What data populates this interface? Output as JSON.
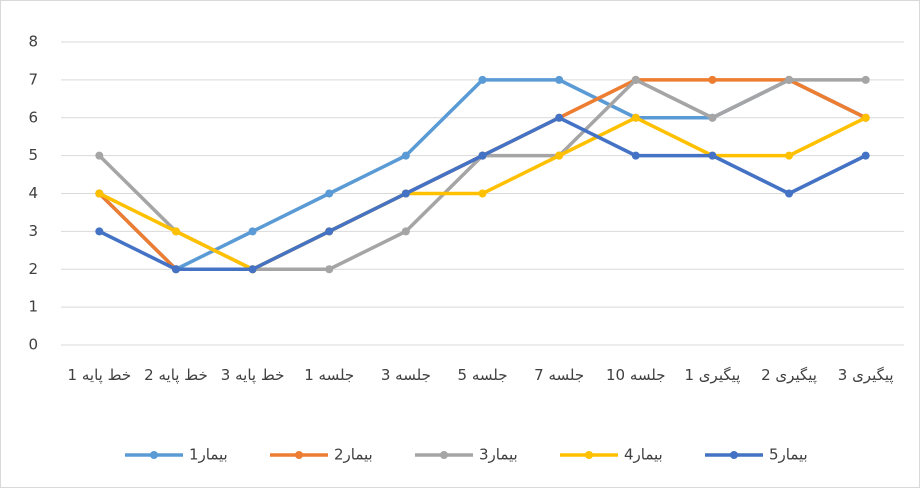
{
  "chart_data": {
    "type": "line",
    "categories": [
      "خط پایه 1",
      "خط پایه 2",
      "خط پایه 3",
      "جلسه 1",
      "جلسه 3",
      "جلسه 5",
      "جلسه 7",
      "جلسه 10",
      "پیگیری 1",
      "پیگیری 2",
      "پیگیری 3"
    ],
    "series": [
      {
        "name": "بیمار1",
        "color": "#5B9BD5",
        "values": [
          4,
          2,
          3,
          4,
          5,
          7,
          7,
          6,
          6,
          7,
          6
        ]
      },
      {
        "name": "بیمار2",
        "color": "#ED7D31",
        "values": [
          4,
          2,
          2,
          3,
          4,
          5,
          6,
          7,
          7,
          7,
          6
        ]
      },
      {
        "name": "بیمار3",
        "color": "#A5A5A5",
        "values": [
          5,
          3,
          2,
          2,
          3,
          5,
          5,
          7,
          6,
          7,
          7
        ]
      },
      {
        "name": "بیمار4",
        "color": "#FFC000",
        "values": [
          4,
          3,
          2,
          3,
          4,
          4,
          5,
          6,
          5,
          5,
          6
        ]
      },
      {
        "name": "بیمار5",
        "color": "#4472C4",
        "values": [
          3,
          2,
          2,
          3,
          4,
          5,
          6,
          5,
          5,
          4,
          5
        ]
      }
    ],
    "ylim": [
      0,
      8
    ],
    "yticks": [
      0,
      1,
      2,
      3,
      4,
      5,
      6,
      7,
      8
    ],
    "grid": true,
    "legend": "bottom"
  }
}
